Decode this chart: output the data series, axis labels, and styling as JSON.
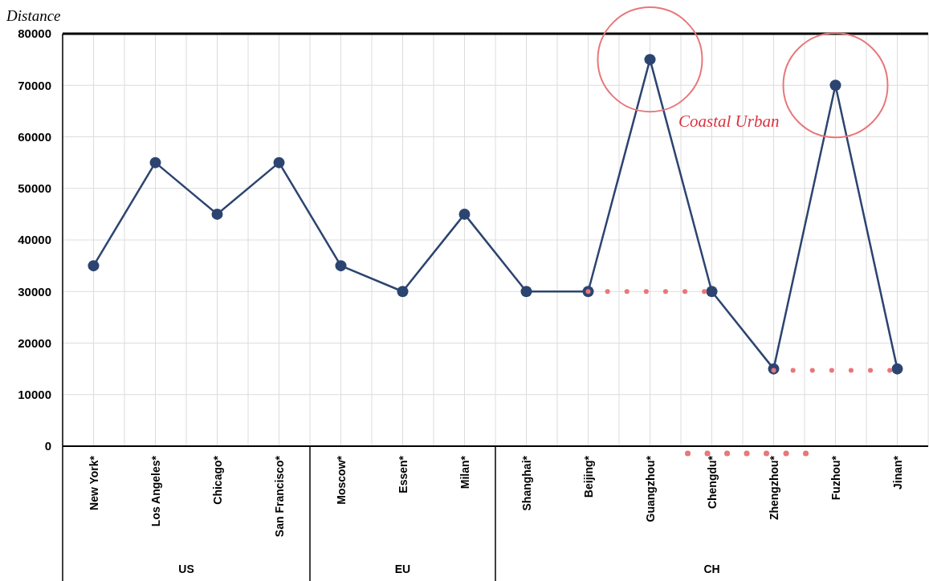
{
  "chart_data": {
    "type": "line",
    "ylabel": "Distance",
    "categories": [
      "New York*",
      "Los Angeles*",
      "Chicago*",
      "San Francisco*",
      "Moscow*",
      "Essen*",
      "Milan*",
      "Shanghai*",
      "Beijing*",
      "Guangzhou*",
      "Chengdu*",
      "Zhengzhou*",
      "Fuzhou*",
      "Jinan*"
    ],
    "series": [
      {
        "color": "#2c4470",
        "marker": "circle",
        "line_style": "solid",
        "values": [
          35000,
          55000,
          45000,
          55000,
          35000,
          30000,
          45000,
          30000,
          30000,
          75000,
          30000,
          15000,
          70000,
          15000
        ]
      },
      {
        "color": "#e8777a",
        "marker": "none",
        "line_style": "dotted",
        "values": [
          null,
          null,
          null,
          null,
          null,
          null,
          null,
          null,
          30000,
          30000,
          30000,
          null,
          null,
          null
        ]
      },
      {
        "color": "#e8777a",
        "marker": "none",
        "line_style": "dotted",
        "values": [
          null,
          null,
          null,
          null,
          null,
          null,
          null,
          null,
          null,
          null,
          null,
          14700,
          14700,
          14700
        ]
      }
    ],
    "ylim": [
      0,
      80000
    ],
    "yticks": [
      0,
      10000,
      20000,
      30000,
      40000,
      50000,
      60000,
      70000,
      80000
    ],
    "grid": true,
    "annotations": [
      "Coastal Urban",
      "US",
      "EU",
      "CH"
    ]
  }
}
